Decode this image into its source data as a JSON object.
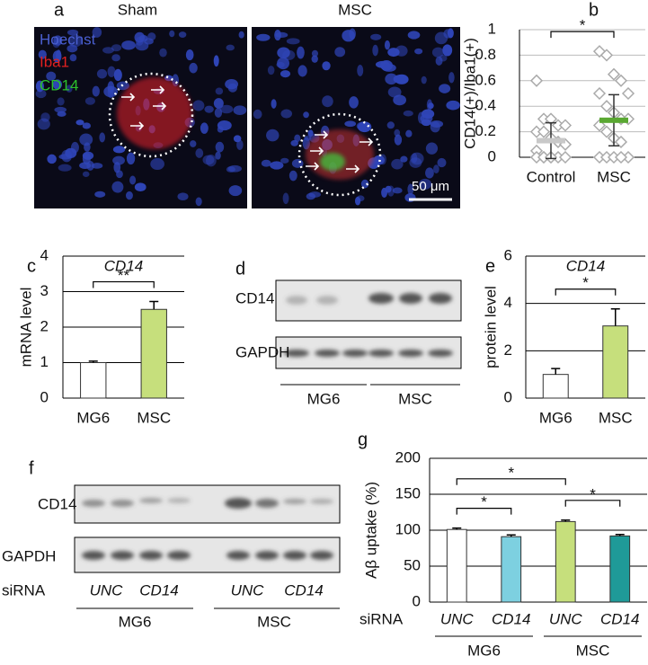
{
  "panel_labels": [
    "a",
    "b",
    "c",
    "d",
    "e",
    "f",
    "g"
  ],
  "micrographs": {
    "titles": [
      "Sham",
      "MSC"
    ],
    "stains": [
      "Hoechst",
      "Iba1",
      "CD14"
    ],
    "scale_bar": "50 μm"
  },
  "blot_d": {
    "bands": [
      "CD14",
      "GAPDH"
    ],
    "groups": [
      "MG6",
      "MSC"
    ]
  },
  "blot_f": {
    "bands": [
      "CD14",
      "GAPDH"
    ],
    "row_label": "siRNA",
    "lanes": [
      "UNC",
      "CD14",
      "UNC",
      "CD14"
    ],
    "groups": [
      "MG6",
      "MSC"
    ]
  },
  "chart_data": [
    {
      "type": "strip",
      "ylabel": "CD14(+)/Iba1(+)",
      "categories": [
        "Control",
        "MSC"
      ],
      "points": [
        [
          0.6,
          0.3,
          0.3,
          0.25,
          0.25,
          0.2,
          0.2,
          0.15,
          0.12,
          0.1,
          0.05,
          0,
          0,
          0,
          0,
          0,
          0,
          0
        ],
        [
          0.83,
          0.8,
          0.65,
          0.6,
          0.5,
          0.5,
          0.4,
          0.35,
          0.3,
          0.3,
          0.25,
          0.2,
          0.15,
          0.12,
          0,
          0,
          0,
          0,
          0
        ]
      ],
      "point_color": "#aaaaaa",
      "means": [
        0.13,
        0.29
      ],
      "errors": [
        0.14,
        0.2
      ],
      "mean_colors": [
        "#c8c8c8",
        "#5aa832"
      ],
      "ylim": [
        0,
        1
      ],
      "yticks": [
        0,
        0.2,
        0.4,
        0.6,
        0.8,
        1
      ],
      "grid": true,
      "grid_color": "#bbbbbb",
      "brackets": [
        {
          "from": 0,
          "to": 1,
          "label": "*"
        }
      ]
    },
    {
      "type": "bar",
      "title": "CD14",
      "ylabel": "mRNA level",
      "categories": [
        "MG6",
        "MSC"
      ],
      "values": [
        1.0,
        2.5
      ],
      "errors": [
        0.04,
        0.22
      ],
      "colors": [
        "#ffffff",
        "#c6df7c"
      ],
      "ylim": [
        0,
        4
      ],
      "yticks": [
        0,
        1,
        2,
        3,
        4
      ],
      "grid": true,
      "grid_color": "#000000",
      "brackets": [
        {
          "from": 0,
          "to": 1,
          "label": "**"
        }
      ]
    },
    {
      "type": "bar",
      "title": "CD14",
      "ylabel": "protein level",
      "categories": [
        "MG6",
        "MSC"
      ],
      "values": [
        1.0,
        3.05
      ],
      "errors": [
        0.25,
        0.72
      ],
      "colors": [
        "#ffffff",
        "#c6df7c"
      ],
      "ylim": [
        0,
        6
      ],
      "yticks": [
        0,
        2,
        4,
        6
      ],
      "grid": true,
      "grid_color": "#000000",
      "brackets": [
        {
          "from": 0,
          "to": 1,
          "label": "*"
        }
      ]
    },
    {
      "type": "bar",
      "ylabel": "Aβ uptake (%)",
      "xlabel": "siRNA",
      "categories": [
        "UNC",
        "CD14",
        "UNC",
        "CD14"
      ],
      "italic_categories": true,
      "groups": [
        "MG6",
        "MSC"
      ],
      "values": [
        101,
        91,
        112,
        92
      ],
      "errors": [
        2,
        2.5,
        2,
        2
      ],
      "colors": [
        "#ffffff",
        "#7dd0e0",
        "#c6df7c",
        "#1f9a98"
      ],
      "ylim": [
        0,
        200
      ],
      "yticks": [
        0,
        50,
        100,
        150,
        200
      ],
      "grid": true,
      "grid_color": "#000000",
      "brackets": [
        {
          "from": 0,
          "to": 1,
          "label": "*"
        },
        {
          "from": 2,
          "to": 3,
          "label": "*"
        },
        {
          "from": 0,
          "to": 2,
          "label": "*"
        }
      ]
    }
  ]
}
